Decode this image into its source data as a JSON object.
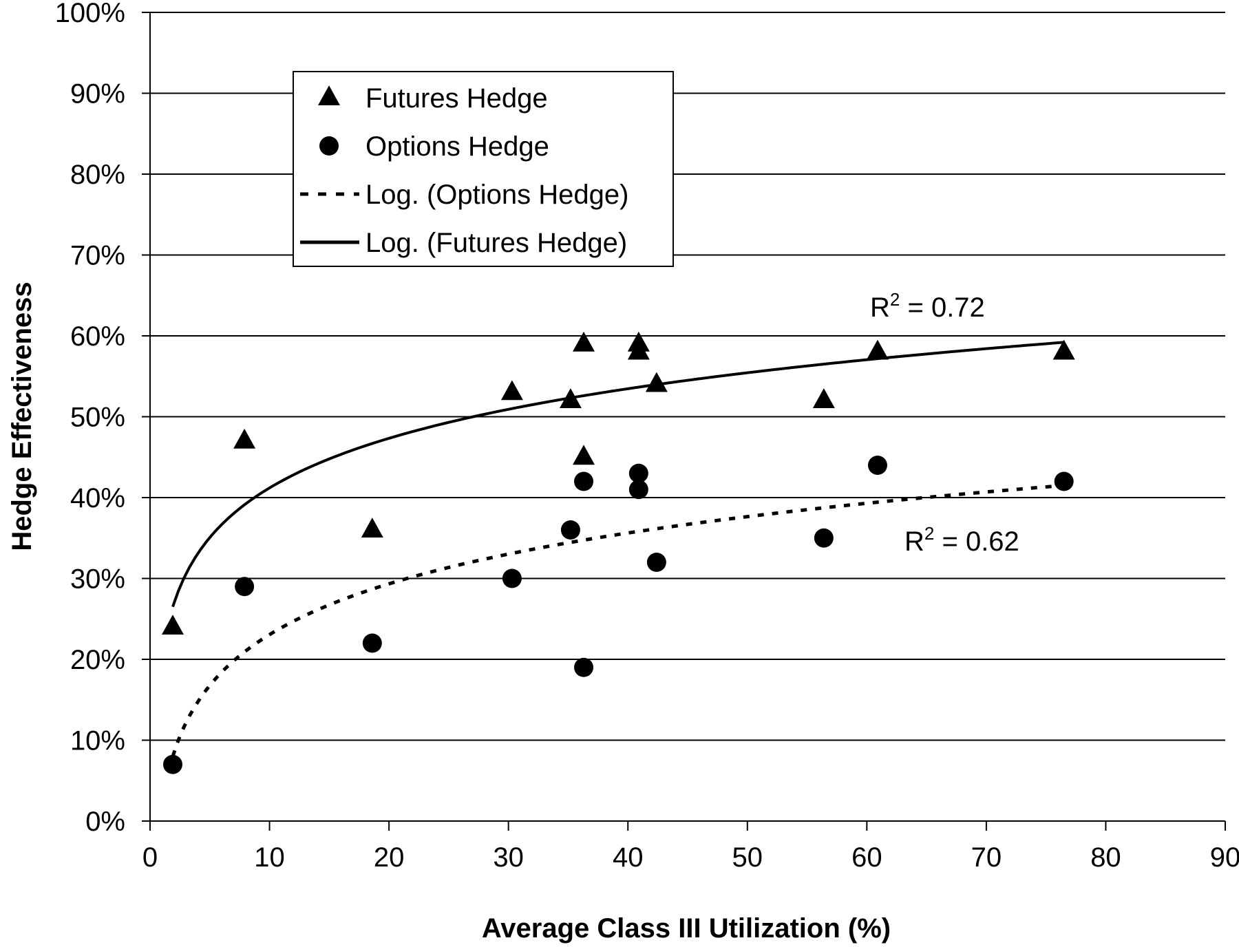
{
  "chart_data": {
    "type": "scatter",
    "xlabel": "Average Class III Utilization (%)",
    "ylabel": "Hedge Effectiveness",
    "xlim": [
      0,
      90
    ],
    "ylim": [
      0,
      100
    ],
    "x_ticks": [
      0,
      10,
      20,
      30,
      40,
      50,
      60,
      70,
      80,
      90
    ],
    "x_tick_labels": [
      "0",
      "10",
      "20",
      "30",
      "40",
      "50",
      "60",
      "70",
      "80",
      "90"
    ],
    "y_ticks": [
      0,
      10,
      20,
      30,
      40,
      50,
      60,
      70,
      80,
      90,
      100
    ],
    "y_tick_labels": [
      "0%",
      "10%",
      "20%",
      "30%",
      "40%",
      "50%",
      "60%",
      "70%",
      "80%",
      "90%",
      "100%"
    ],
    "grid": "horizontal",
    "legend_position": "top-left",
    "series": [
      {
        "name": "Futures Hedge",
        "marker": "triangle",
        "color": "#000000",
        "points": [
          {
            "x": 1.9,
            "y": 24
          },
          {
            "x": 7.9,
            "y": 47
          },
          {
            "x": 18.6,
            "y": 36
          },
          {
            "x": 30.3,
            "y": 53
          },
          {
            "x": 35.2,
            "y": 52
          },
          {
            "x": 36.3,
            "y": 59
          },
          {
            "x": 36.3,
            "y": 45
          },
          {
            "x": 40.9,
            "y": 59
          },
          {
            "x": 40.9,
            "y": 58
          },
          {
            "x": 42.4,
            "y": 54
          },
          {
            "x": 56.4,
            "y": 52
          },
          {
            "x": 60.9,
            "y": 58
          },
          {
            "x": 76.5,
            "y": 58
          }
        ]
      },
      {
        "name": "Options Hedge",
        "marker": "circle",
        "color": "#000000",
        "points": [
          {
            "x": 1.9,
            "y": 7
          },
          {
            "x": 7.9,
            "y": 29
          },
          {
            "x": 18.6,
            "y": 22
          },
          {
            "x": 30.3,
            "y": 30
          },
          {
            "x": 35.2,
            "y": 36
          },
          {
            "x": 36.3,
            "y": 42
          },
          {
            "x": 36.3,
            "y": 19
          },
          {
            "x": 40.9,
            "y": 43
          },
          {
            "x": 40.9,
            "y": 41
          },
          {
            "x": 42.4,
            "y": 32
          },
          {
            "x": 56.4,
            "y": 35
          },
          {
            "x": 60.9,
            "y": 44
          },
          {
            "x": 76.5,
            "y": 42
          }
        ]
      }
    ],
    "trendlines": [
      {
        "name": "Log. (Options Hedge)",
        "style": "dashed",
        "color": "#000000",
        "x_range": [
          1.9,
          76.5
        ],
        "values": [
          {
            "x": 1.9,
            "y": 8
          },
          {
            "x": 7.9,
            "y": 21
          },
          {
            "x": 76.5,
            "y": 41.5
          }
        ],
        "r_squared_label": "R",
        "r_squared_sup": "2",
        "r_squared_value": " = 0.62"
      },
      {
        "name": "Log. (Futures Hedge)",
        "style": "solid",
        "color": "#000000",
        "x_range": [
          1.9,
          76.5
        ],
        "values": [
          {
            "x": 1.9,
            "y": 26.5
          },
          {
            "x": 7.9,
            "y": 38.8
          },
          {
            "x": 76.5,
            "y": 59.2
          }
        ],
        "r_squared_label": "R",
        "r_squared_sup": "2",
        "r_squared_value": " = 0.72"
      }
    ],
    "legend": [
      {
        "label": "Futures Hedge",
        "symbol": "triangle"
      },
      {
        "label": "Options Hedge",
        "symbol": "circle"
      },
      {
        "label": "Log. (Options Hedge)",
        "symbol": "dashed-line"
      },
      {
        "label": "Log. (Futures Hedge)",
        "symbol": "solid-line"
      }
    ]
  }
}
